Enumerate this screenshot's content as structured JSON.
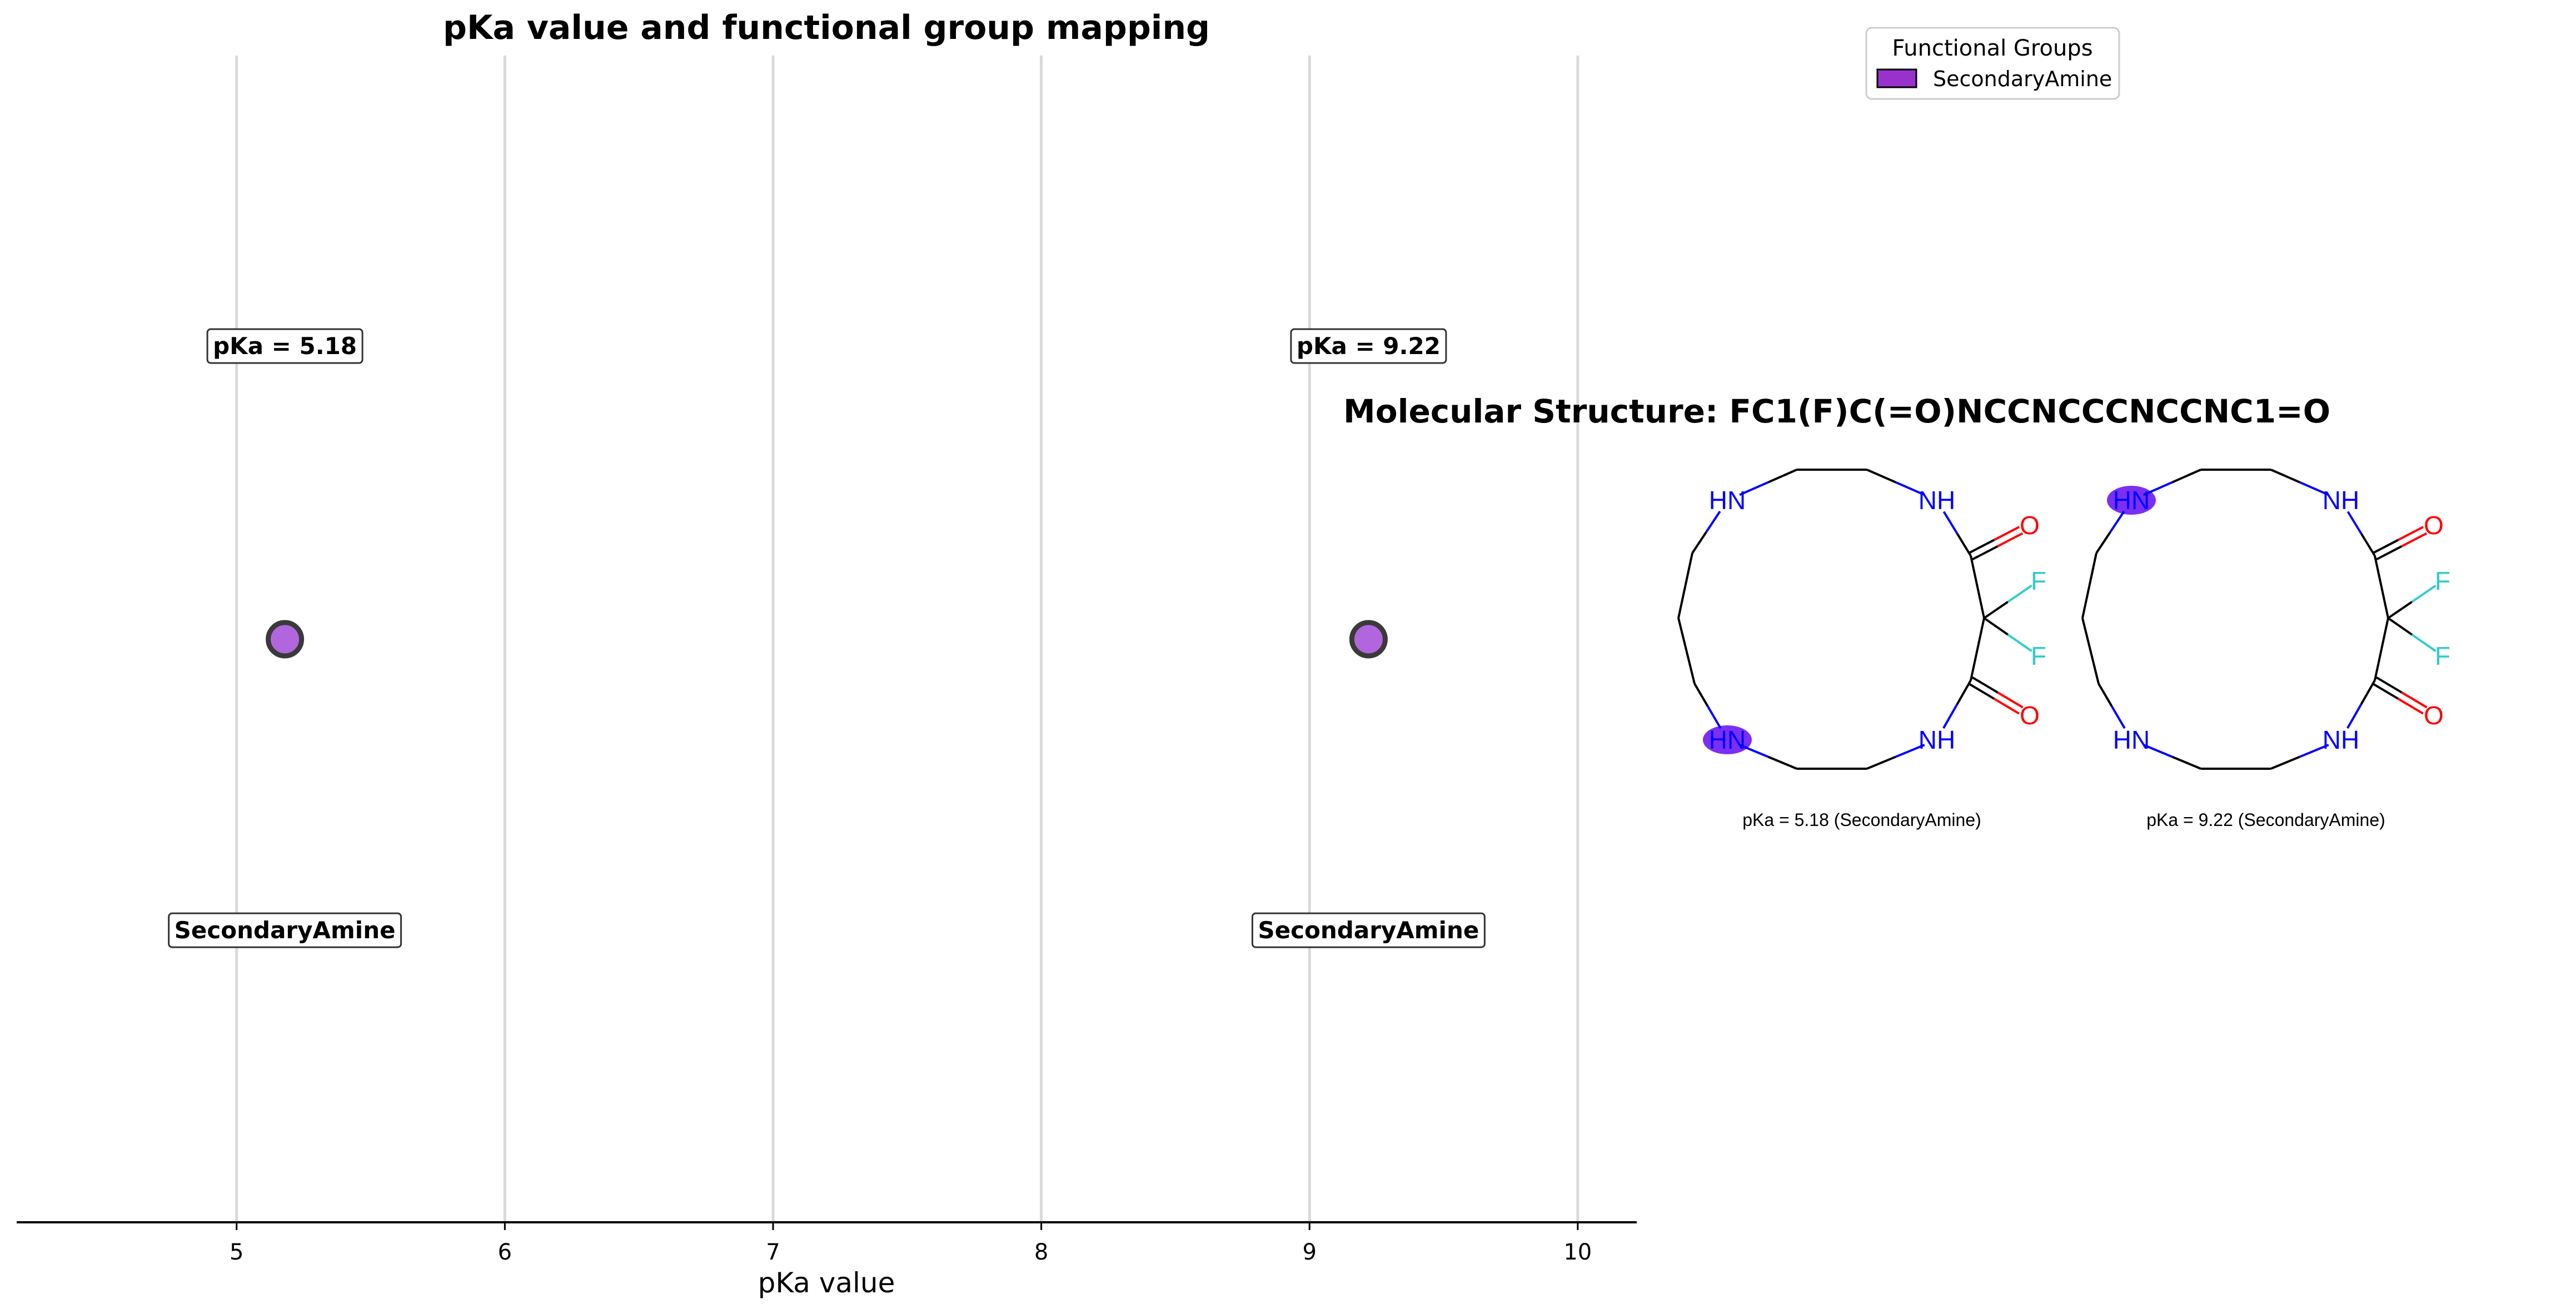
{
  "chart_data": {
    "type": "scatter",
    "title": "pKa value and functional group mapping",
    "xlabel": "pKa value",
    "ylabel": "",
    "xlim": [
      4.18,
      10.22
    ],
    "xticks": [
      5,
      6,
      7,
      8,
      9,
      10
    ],
    "grid": "vertical",
    "points": [
      {
        "x": 5.18,
        "label": "pKa = 5.18",
        "group": "SecondaryAmine"
      },
      {
        "x": 9.22,
        "label": "pKa = 9.22",
        "group": "SecondaryAmine"
      }
    ],
    "legend": {
      "title": "Functional Groups",
      "placement": "top-center",
      "entries": [
        {
          "name": "SecondaryAmine",
          "color": "#9932CC"
        }
      ]
    }
  },
  "structure_panel": {
    "title": "Molecular Structure: FC1(F)C(=O)NCCNCCCNCCNC1=O",
    "smiles": "FC1(F)C(=O)NCCNCCCNCCNC1=O",
    "molecules": [
      {
        "caption": "pKa = 5.18 (SecondaryAmine)",
        "highlight": "bottom-left-HN"
      },
      {
        "caption": "pKa = 9.22 (SecondaryAmine)",
        "highlight": "top-left-HN"
      }
    ],
    "atom_labels": {
      "amine": "HN",
      "amide": "NH",
      "oxygen": "O",
      "fluorine": "F"
    }
  },
  "colors": {
    "point_fill": "#B266DD",
    "point_edge": "#3a3a3a",
    "legend_swatch": "#9932CC",
    "highlight": "#7B2FF2",
    "nitrogen": "#0000FF",
    "oxygen": "#FF0000",
    "fluorine": "#33CCCC",
    "bond": "#000000",
    "grid": "#d9d9d9"
  }
}
